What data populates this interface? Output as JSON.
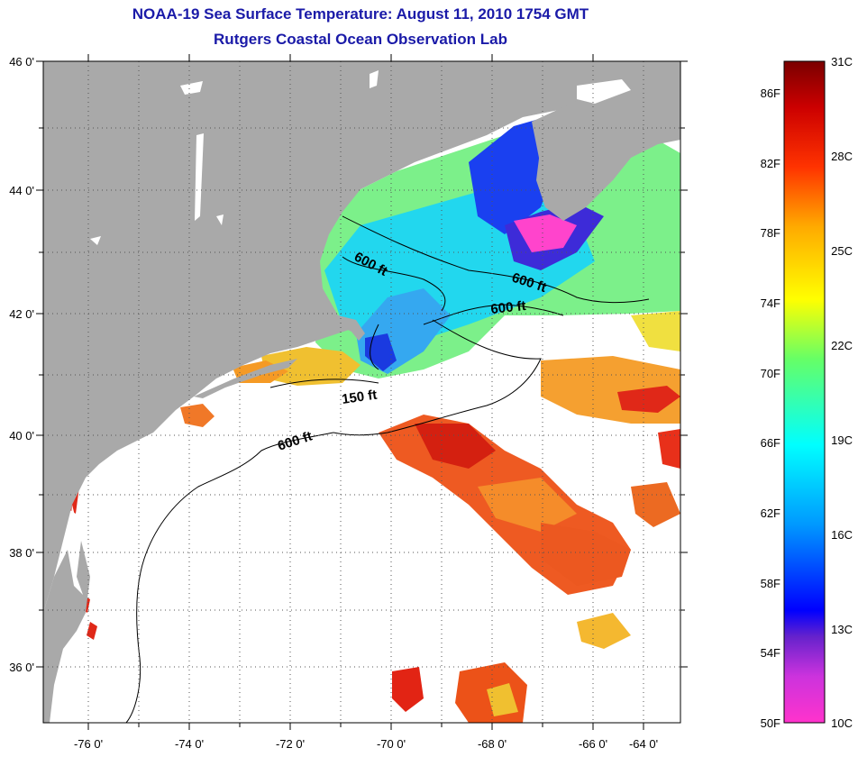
{
  "title": "NOAA-19 Sea Surface Temperature:  August 11, 2010 1754 GMT",
  "subtitle": "Rutgers Coastal Ocean Observation Lab",
  "map": {
    "lat_labels": [
      "46 0'",
      "44 0'",
      "42 0'",
      "40 0'",
      "38 0'",
      "36 0'"
    ],
    "lon_labels": [
      "-76 0'",
      "-74 0'",
      "-72 0'",
      "-70 0'",
      "-68 0'",
      "-66 0'",
      "-64 0'"
    ],
    "contour_labels": [
      "600 ft",
      "600 ft",
      "600 ft",
      "150 ft",
      "600 ft"
    ],
    "colors": {
      "land": "#a9a9a9",
      "no_data": "#ffffff",
      "gridline": "#555555"
    }
  },
  "colorbar": {
    "fahrenheit_labels": [
      "86F",
      "82F",
      "78F",
      "74F",
      "70F",
      "66F",
      "62F",
      "58F",
      "54F",
      "50F"
    ],
    "celsius_labels": [
      "31C",
      "28C",
      "25C",
      "22C",
      "19C",
      "16C",
      "13C",
      "10C"
    ],
    "gradient_stops": [
      "#ff33cc",
      "#8a2be2",
      "#0000ff",
      "#0099ff",
      "#00ffff",
      "#66ff66",
      "#ffff00",
      "#ffaa00",
      "#ff3300",
      "#cc0000",
      "#7a0000"
    ]
  }
}
